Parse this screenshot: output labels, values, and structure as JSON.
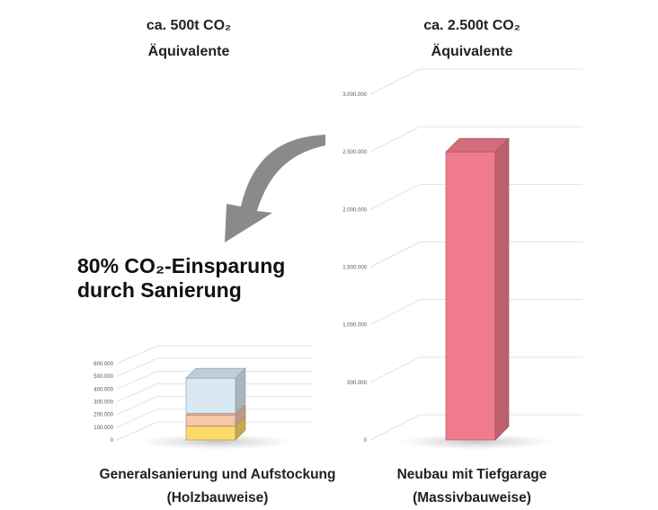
{
  "header_left": {
    "line1": "ca. 500t CO₂",
    "line2": "Äquivalente"
  },
  "header_right": {
    "line1": "ca. 2.500t CO₂",
    "line2": "Äquivalente"
  },
  "savings": {
    "line1": "80% CO₂-Einsparung",
    "line2": "durch Sanierung"
  },
  "caption_left": {
    "line1": "Generalsanierung und Aufstockung",
    "line2": "(Holzbauweise)"
  },
  "caption_right": {
    "line1": "Neubau mit Tiefgarage",
    "line2": "(Massivbauweise)"
  },
  "colors": {
    "bar_red": "#f07b8c",
    "seg_yellow": "#fbd96b",
    "seg_orange": "#f9c6a8",
    "seg_blue": "#d9e9f4",
    "arrow": "#8a8a8a"
  },
  "chart_data": [
    {
      "type": "stacked-bar-3d",
      "name": "Generalsanierung und Aufstockung (Holzbauweise)",
      "ylim": [
        0,
        600000
      ],
      "ticks": [
        "0",
        "100.000",
        "200.000",
        "300.000",
        "400.000",
        "500.000",
        "600.000"
      ],
      "segments": [
        {
          "color": "#fbd96b",
          "value": 110000
        },
        {
          "color": "#f9c6a8",
          "value": 100000
        },
        {
          "color": "#d9e9f4",
          "value": 290000
        }
      ]
    },
    {
      "type": "bar-3d",
      "name": "Neubau mit Tiefgarage (Massivbauweise)",
      "ylim": [
        0,
        3000000
      ],
      "ticks": [
        "0",
        "500.000",
        "1.000.000",
        "1.500.000",
        "2.000.000",
        "2.500.000",
        "3.000.000"
      ],
      "values": [
        2500000
      ]
    }
  ]
}
